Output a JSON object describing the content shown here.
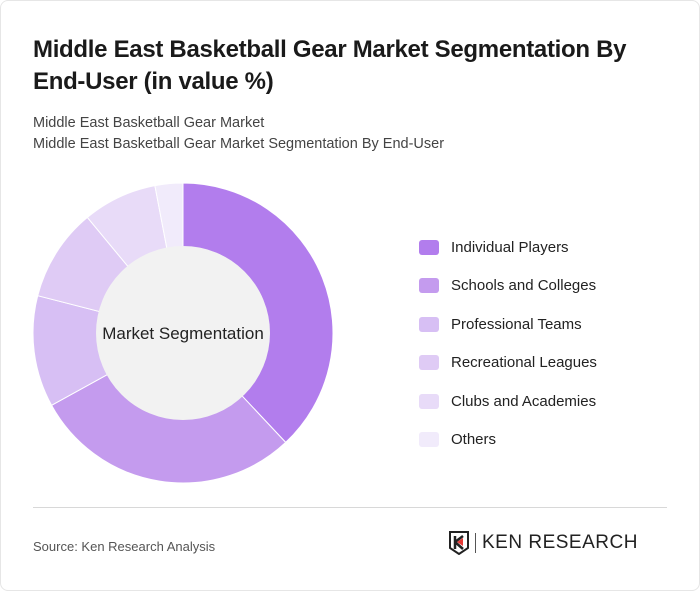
{
  "title": "Middle East Basketball Gear Market Segmentation By End-User (in value %)",
  "subtitle1": "Middle East Basketball Gear Market",
  "subtitle2": "Middle East Basketball Gear Market Segmentation By End-User",
  "source": "Source: Ken Research Analysis",
  "logo_text": "KEN RESEARCH",
  "chart_data": {
    "type": "pie",
    "variant": "donut",
    "center_label": "Market Segmentation",
    "legend_position": "right",
    "categories": [
      "Individual Players",
      "Schools and Colleges",
      "Professional Teams",
      "Recreational Leagues",
      "Clubs and Academies",
      "Others"
    ],
    "values": [
      38,
      29,
      12,
      10,
      8,
      3
    ],
    "colors": [
      "#b27ded",
      "#c49bee",
      "#d7bff4",
      "#dfcbf5",
      "#e8dbf8",
      "#f1ebfb"
    ]
  }
}
